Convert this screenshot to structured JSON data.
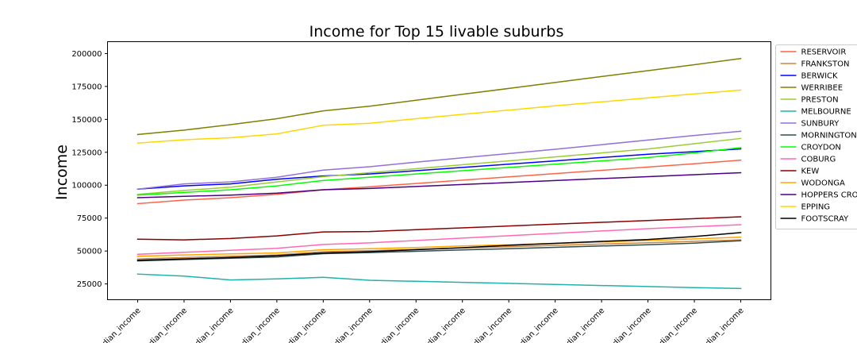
{
  "chart_data": {
    "type": "line",
    "title": "Income for Top 15 livable suburbs",
    "xlabel": "",
    "ylabel": "Income",
    "x": [
      "median_income",
      "median_income",
      "median_income",
      "median_income",
      "median_income",
      "median_income",
      "median_income",
      "median_income",
      "median_income",
      "median_income",
      "median_income",
      "median_income",
      "median_income",
      "median_income"
    ],
    "ylim": [
      13000,
      209000
    ],
    "yticks": [
      25000,
      50000,
      75000,
      100000,
      125000,
      150000,
      175000,
      200000
    ],
    "grid": false,
    "legend_position": "right",
    "series": [
      {
        "name": "RESERVOIR",
        "color": "#ff6347",
        "values": [
          86000,
          88700,
          90500,
          93000,
          96500,
          98800,
          101300,
          103800,
          106300,
          108800,
          111300,
          113800,
          116300,
          119000
        ]
      },
      {
        "name": "FRANKSTON",
        "color": "#cd853f",
        "values": [
          44000,
          45000,
          46000,
          47000,
          49500,
          50300,
          51300,
          52300,
          53300,
          54300,
          55300,
          56300,
          57300,
          58500
        ]
      },
      {
        "name": "BERWICK",
        "color": "#0000ff",
        "values": [
          97000,
          99500,
          101000,
          104500,
          107000,
          108500,
          111000,
          113500,
          116000,
          118500,
          121000,
          123500,
          125500,
          127500
        ]
      },
      {
        "name": "WERRIBEE",
        "color": "#808000",
        "values": [
          138500,
          141800,
          146000,
          150500,
          156500,
          160000,
          164500,
          169000,
          173500,
          178000,
          182500,
          187000,
          191500,
          196200
        ]
      },
      {
        "name": "PRESTON",
        "color": "#9acd32",
        "values": [
          93000,
          96000,
          98500,
          102500,
          106500,
          109500,
          112500,
          115500,
          118500,
          121500,
          124500,
          127500,
          131500,
          135500
        ]
      },
      {
        "name": "MELBOURNE",
        "color": "#20b2aa",
        "values": [
          32500,
          31000,
          28000,
          28800,
          30000,
          27800,
          27000,
          26200,
          25400,
          24600,
          23800,
          23000,
          22200,
          21500
        ]
      },
      {
        "name": "SUNBURY",
        "color": "#9370db",
        "values": [
          97000,
          101000,
          102500,
          106000,
          111500,
          114000,
          117500,
          120800,
          124000,
          127300,
          130800,
          134300,
          137800,
          141000
        ]
      },
      {
        "name": "MORNINGTON",
        "color": "#2f4f4f",
        "values": [
          42500,
          43500,
          44500,
          45500,
          48000,
          48800,
          49800,
          50800,
          51800,
          52800,
          53800,
          54800,
          56000,
          57800
        ]
      },
      {
        "name": "CROYDON",
        "color": "#00ff00",
        "values": [
          92500,
          94500,
          96500,
          99500,
          103500,
          106000,
          108500,
          111000,
          113500,
          116000,
          118500,
          121000,
          124500,
          128500
        ]
      },
      {
        "name": "COBURG",
        "color": "#ff69b4",
        "values": [
          47500,
          49000,
          50500,
          52000,
          55000,
          56200,
          58000,
          59800,
          61600,
          63400,
          65200,
          67000,
          68500,
          70000
        ]
      },
      {
        "name": "KEW",
        "color": "#8b0000",
        "values": [
          59000,
          58500,
          59500,
          61500,
          64500,
          64800,
          66200,
          67600,
          69000,
          70400,
          71800,
          73200,
          74600,
          76000
        ]
      },
      {
        "name": "WODONGA",
        "color": "#ffa500",
        "values": [
          46000,
          47000,
          47800,
          48500,
          51000,
          51700,
          52700,
          53800,
          54800,
          55800,
          56900,
          58000,
          59200,
          60500
        ]
      },
      {
        "name": "HOPPERS CRO",
        "color": "#4b0082",
        "values": [
          90500,
          91500,
          92500,
          94000,
          96500,
          97500,
          99000,
          100500,
          102000,
          103500,
          105000,
          106500,
          108000,
          109500
        ]
      },
      {
        "name": "EPPING",
        "color": "#ffd700",
        "values": [
          132000,
          134500,
          136000,
          139000,
          145500,
          147000,
          150500,
          153800,
          157000,
          160300,
          163300,
          166300,
          169300,
          172300
        ]
      },
      {
        "name": "FOOTSCRAY",
        "color": "#000000",
        "values": [
          43000,
          44000,
          45000,
          46500,
          48500,
          49500,
          51000,
          52500,
          54300,
          55800,
          57300,
          58800,
          61000,
          64000
        ]
      }
    ]
  }
}
